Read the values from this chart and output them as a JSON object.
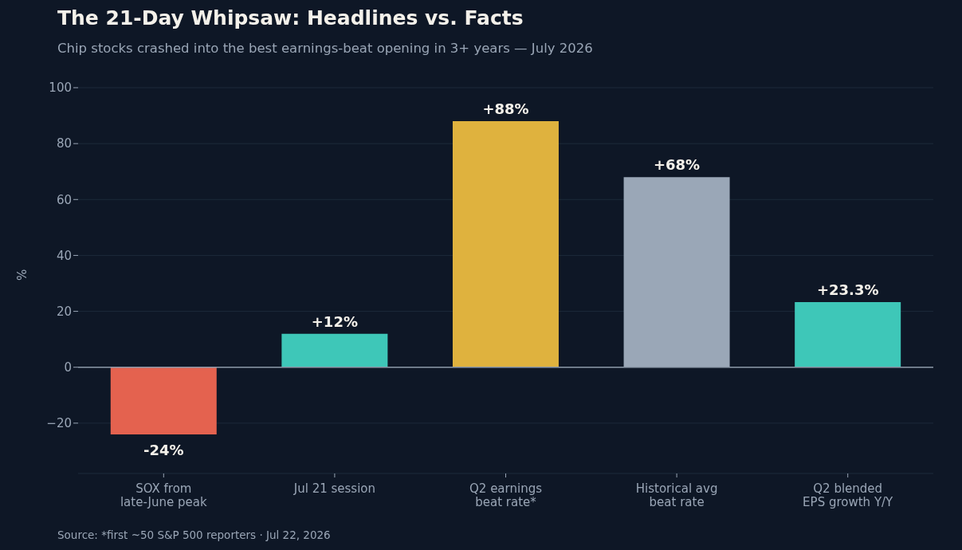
{
  "chart_data": {
    "type": "bar",
    "title": "The 21-Day Whipsaw: Headlines vs. Facts",
    "subtitle": "Chip stocks crashed into the best earnings-beat opening in 3+ years — July 2026",
    "ylabel": "%",
    "categories": [
      "SOX from\nlate-June peak",
      "Jul 21 session",
      "Q2 earnings\nbeat rate*",
      "Historical avg\nbeat rate",
      "Q2 blended\nEPS growth Y/Y"
    ],
    "values": [
      -24,
      12,
      88,
      68,
      23.3
    ],
    "colors": [
      "#e4624f",
      "#3ec7b8",
      "#dfb23e",
      "#9aa7b7",
      "#3ec7b8"
    ],
    "value_labels": [
      "-24%",
      "+12%",
      "+88%",
      "+68%",
      "+23.3%"
    ],
    "ylim": [
      -38,
      100
    ],
    "yticks": [
      {
        "value": -20,
        "label": "−20"
      },
      0,
      20,
      40,
      60,
      80,
      100
    ],
    "grid": "y",
    "ref_lines": [
      {
        "axis": "y",
        "value": 0,
        "color": "#8b98a8"
      }
    ],
    "annotations": [
      "Source: *first ~50 S&P 500 reporters · Jul 22, 2026"
    ]
  }
}
